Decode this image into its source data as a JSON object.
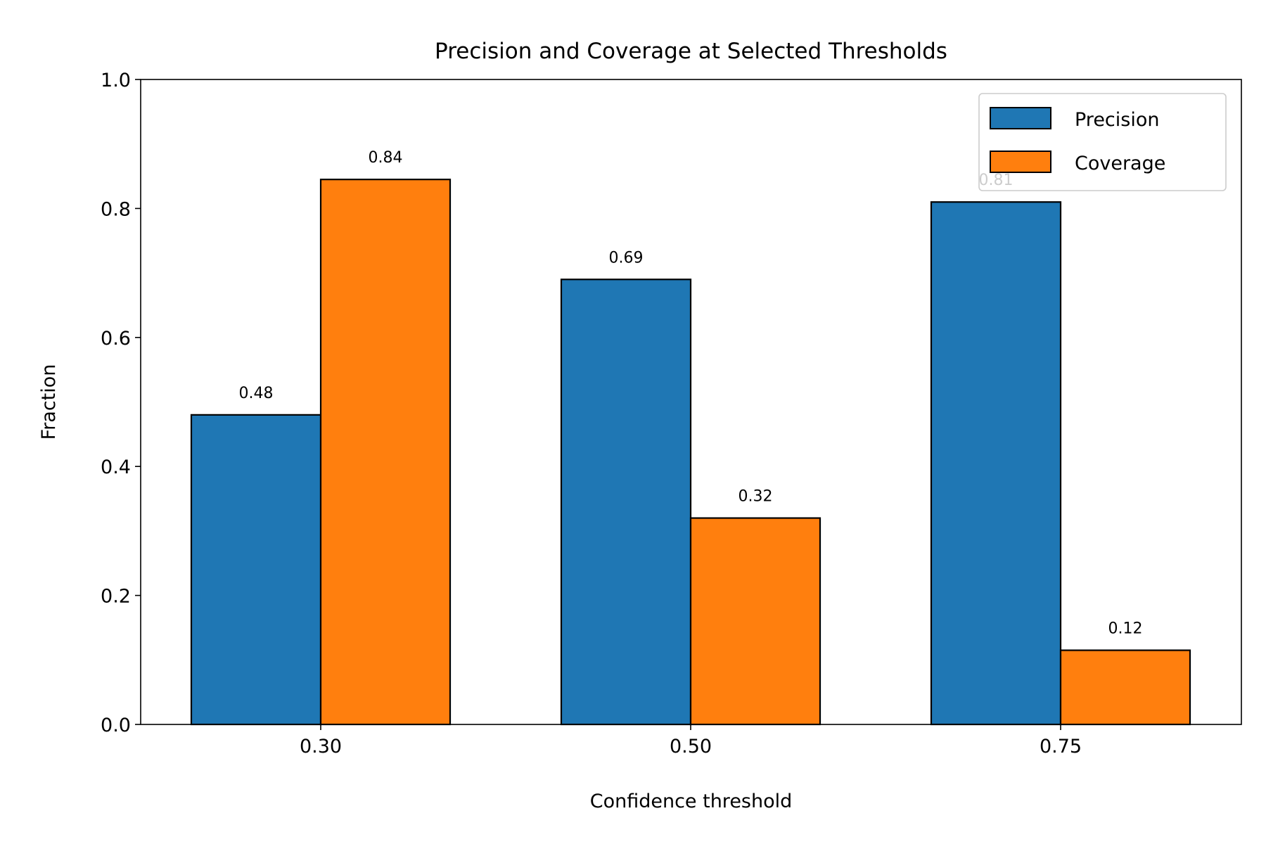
{
  "chart_data": {
    "type": "bar",
    "title": "Precision and Coverage at Selected Thresholds",
    "xlabel": "Confidence threshold",
    "ylabel": "Fraction",
    "categories": [
      "0.30",
      "0.50",
      "0.75"
    ],
    "series": [
      {
        "name": "Precision",
        "values": [
          0.48,
          0.69,
          0.81
        ],
        "labels": [
          "0.48",
          "0.69",
          "0.81"
        ],
        "color": "#1f77b4"
      },
      {
        "name": "Coverage",
        "values": [
          0.845,
          0.32,
          0.115
        ],
        "labels": [
          "0.84",
          "0.32",
          "0.12"
        ],
        "color": "#ff7f0e"
      }
    ],
    "ylim": [
      0,
      1.0
    ],
    "yticks": [
      "0.0",
      "0.2",
      "0.4",
      "0.6",
      "0.8",
      "1.0"
    ],
    "grid": false,
    "legend_position": "top-right"
  }
}
